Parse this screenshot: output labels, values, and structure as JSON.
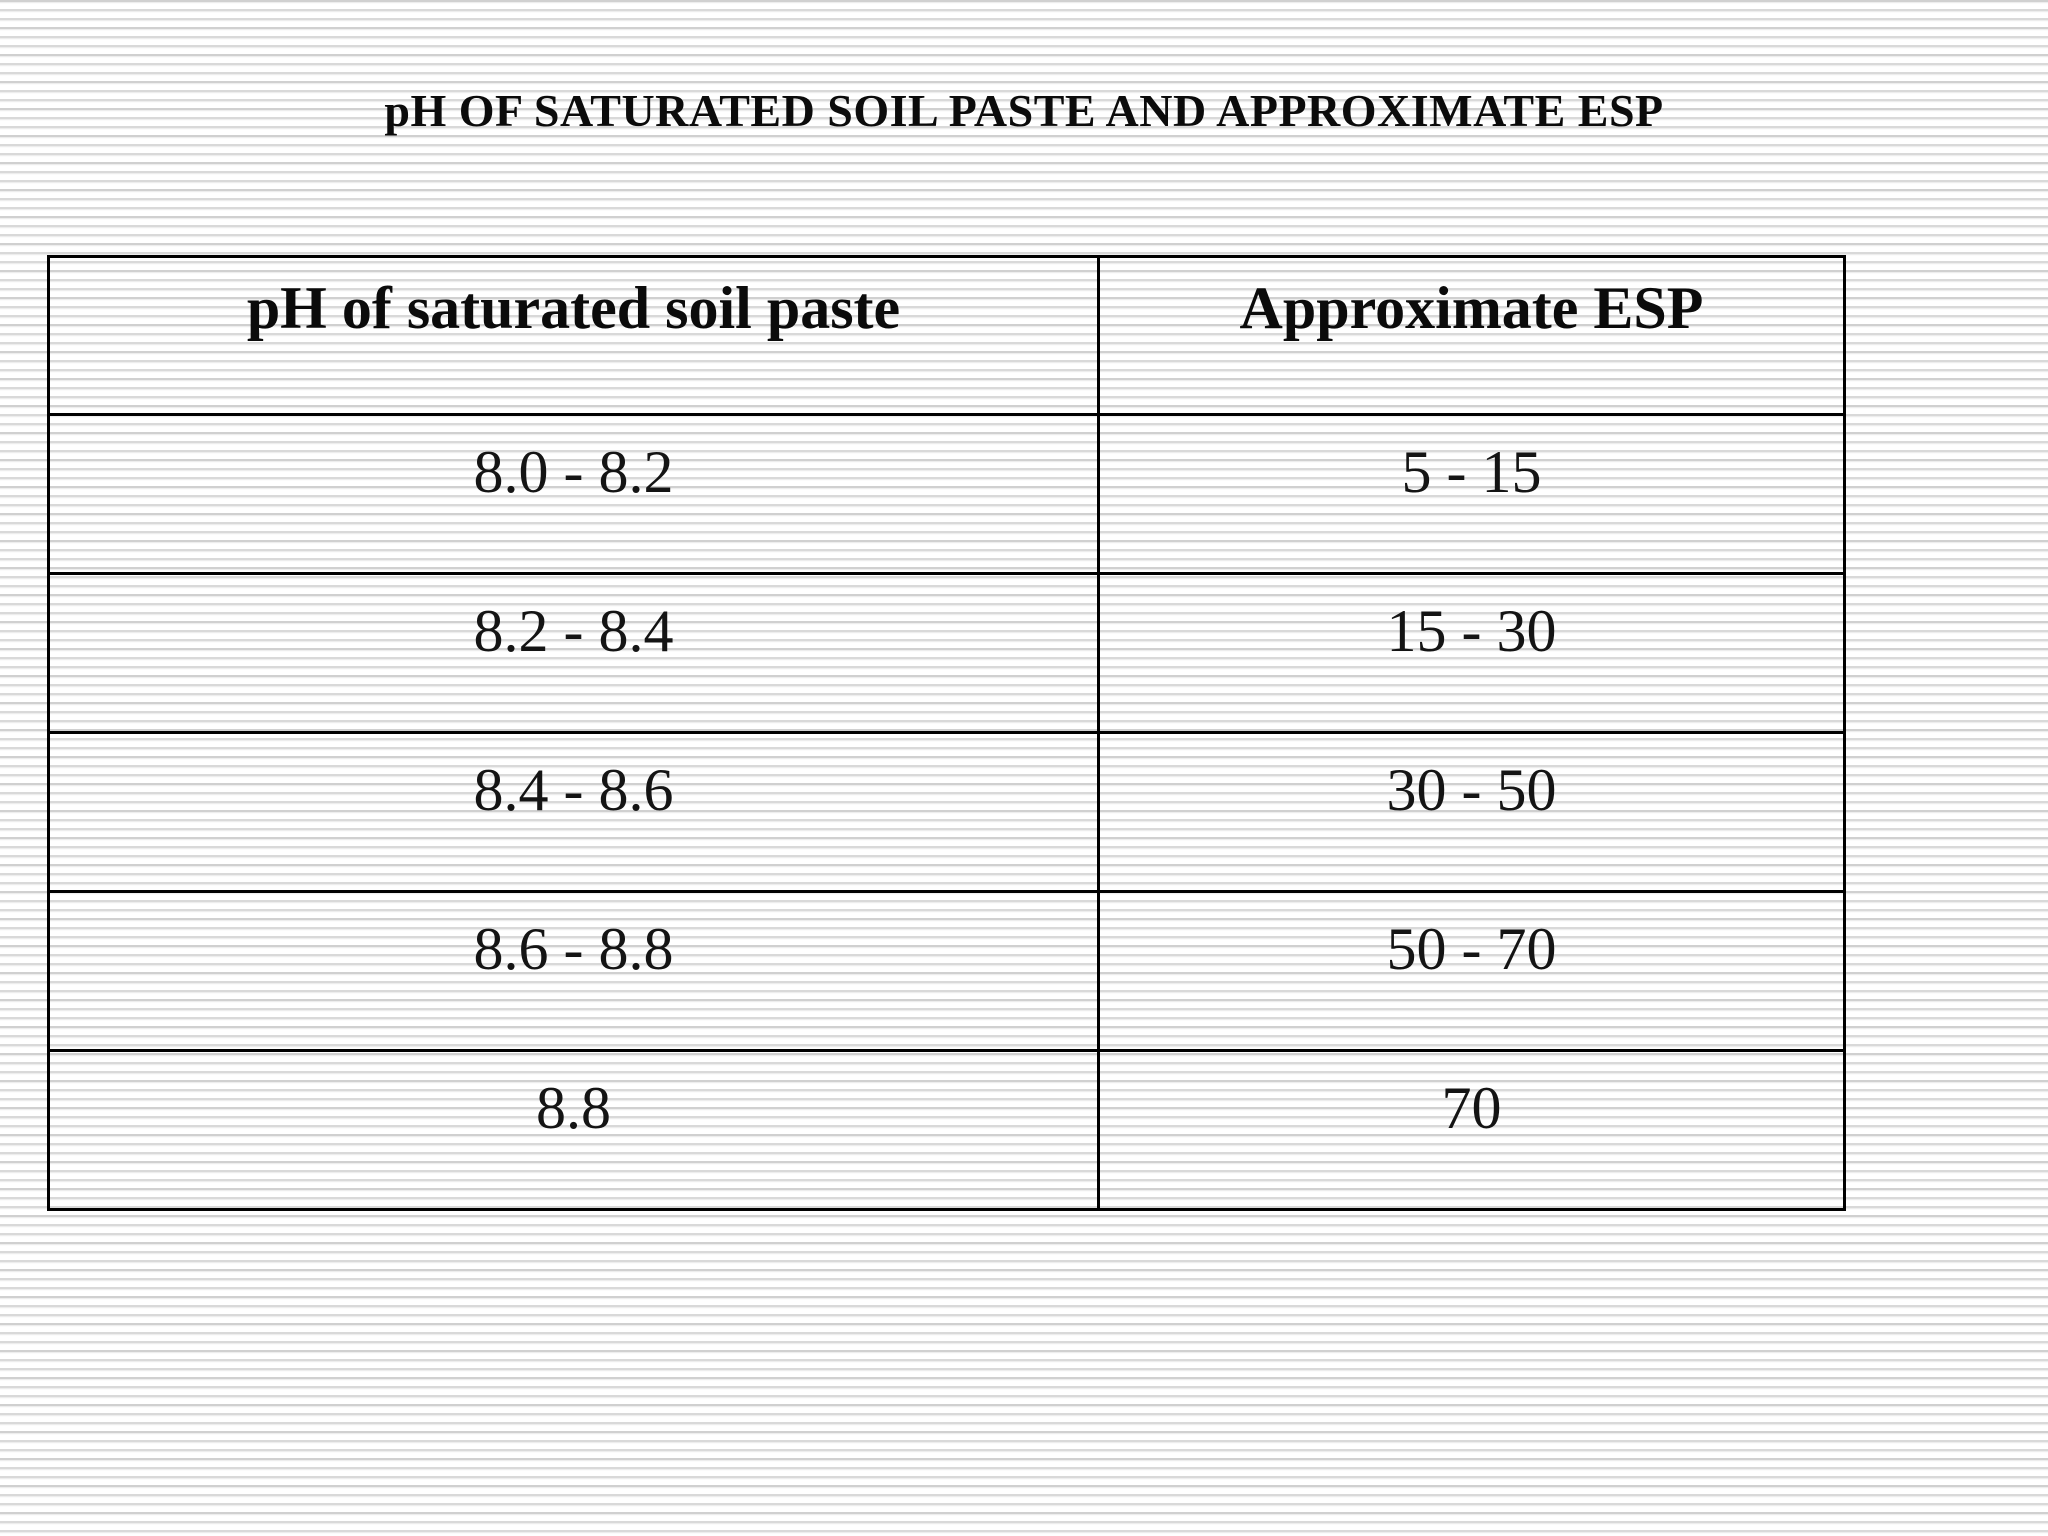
{
  "slide": {
    "title": "pH OF SATURATED SOIL PASTE AND APPROXIMATE ESP"
  },
  "table": {
    "headers": [
      "pH of saturated soil paste",
      "Approximate ESP"
    ],
    "rows": [
      [
        "8.0 - 8.2",
        "5 - 15"
      ],
      [
        "8.2 - 8.4",
        "15 - 30"
      ],
      [
        "8.4 - 8.6",
        "30 - 50"
      ],
      [
        "8.6 - 8.8",
        "50 - 70"
      ],
      [
        "8.8",
        "70"
      ]
    ]
  },
  "chart_data": {
    "type": "table",
    "title": "pH OF SATURATED SOIL PASTE AND APPROXIMATE ESP",
    "columns": [
      "pH of saturated soil paste",
      "Approximate ESP"
    ],
    "rows": [
      [
        "8.0 - 8.2",
        "5 - 15"
      ],
      [
        "8.2 - 8.4",
        "15 - 30"
      ],
      [
        "8.4 - 8.6",
        "30 - 50"
      ],
      [
        "8.6 - 8.8",
        "50 - 70"
      ],
      [
        "8.8",
        "70"
      ]
    ]
  },
  "colors": {
    "border": "#000000",
    "text": "#0d0d0d",
    "stripe": "#d9d9d9",
    "background": "#ffffff"
  }
}
